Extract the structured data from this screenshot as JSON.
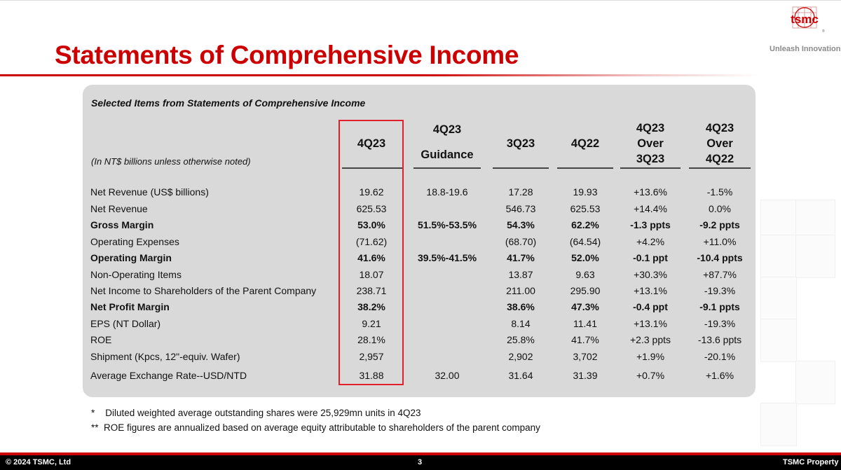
{
  "title": "Statements of Comprehensive Income",
  "logo": {
    "text": "tsmc",
    "tagline": "Unleash Innovation"
  },
  "table": {
    "caption": "Selected Items from Statements of Comprehensive Income",
    "unit_note": "(In NT$ billions unless otherwise noted)",
    "headers": [
      [
        "4Q23"
      ],
      [
        "4Q23",
        "Guidance"
      ],
      [
        "3Q23"
      ],
      [
        "4Q22"
      ],
      [
        "4Q23",
        "Over",
        "3Q23"
      ],
      [
        "4Q23",
        "Over",
        "4Q22"
      ]
    ],
    "rows": [
      {
        "label": "Net Revenue (US$ billions)",
        "bold": false,
        "values": [
          "19.62",
          "18.8-19.6",
          "17.28",
          "19.93",
          "+13.6%",
          "-1.5%"
        ]
      },
      {
        "label": "Net Revenue",
        "bold": false,
        "values": [
          "625.53",
          "",
          "546.73",
          "625.53",
          "+14.4%",
          "0.0%"
        ]
      },
      {
        "label": "Gross Margin",
        "bold": true,
        "values": [
          "53.0%",
          "51.5%-53.5%",
          "54.3%",
          "62.2%",
          "-1.3 ppts",
          "-9.2 ppts"
        ]
      },
      {
        "label": "Operating Expenses",
        "bold": false,
        "values": [
          "(71.62)",
          "",
          "(68.70)",
          "(64.54)",
          "+4.2%",
          "+11.0%"
        ]
      },
      {
        "label": "Operating Margin",
        "bold": true,
        "values": [
          "41.6%",
          "39.5%-41.5%",
          "41.7%",
          "52.0%",
          "-0.1 ppt",
          "-10.4 ppts"
        ]
      },
      {
        "label": "Non-Operating Items",
        "bold": false,
        "values": [
          "18.07",
          "",
          "13.87",
          "9.63",
          "+30.3%",
          "+87.7%"
        ]
      },
      {
        "label": "Net Income to Shareholders of the Parent Company",
        "bold": false,
        "values": [
          "238.71",
          "",
          "211.00",
          "295.90",
          "+13.1%",
          "-19.3%"
        ]
      },
      {
        "label": "Net Profit Margin",
        "bold": true,
        "values": [
          "38.2%",
          "",
          "38.6%",
          "47.3%",
          "-0.4 ppt",
          "-9.1 ppts"
        ]
      },
      {
        "label": "EPS (NT Dollar)",
        "bold": false,
        "values": [
          "9.21",
          "",
          "8.14",
          "11.41",
          "+13.1%",
          "-19.3%"
        ]
      },
      {
        "label": "ROE",
        "bold": false,
        "values": [
          "28.1%",
          "",
          "25.8%",
          "41.7%",
          "+2.3 ppts",
          "-13.6 ppts"
        ]
      },
      {
        "label": "Shipment (Kpcs, 12\"-equiv. Wafer)",
        "bold": false,
        "values": [
          "2,957",
          "",
          "2,902",
          "3,702",
          "+1.9%",
          "-20.1%"
        ]
      },
      {
        "label": "Average Exchange Rate--USD/NTD",
        "bold": false,
        "values": [
          "31.88",
          "32.00",
          "31.64",
          "31.39",
          "+0.7%",
          "+1.6%"
        ]
      }
    ]
  },
  "footnotes": [
    "*    Diluted weighted average outstanding shares were 25,929mn units in 4Q23",
    "**  ROE figures are annualized based on average equity attributable to shareholders of the parent company"
  ],
  "footer": {
    "left": "© 2024 TSMC, Ltd",
    "page": "3",
    "right": "TSMC Property"
  },
  "colors": {
    "brand_red": "#cc0000",
    "highlight_border": "#e0202a",
    "panel_bg": "#d9d9d9",
    "footer_bg": "#000000"
  }
}
